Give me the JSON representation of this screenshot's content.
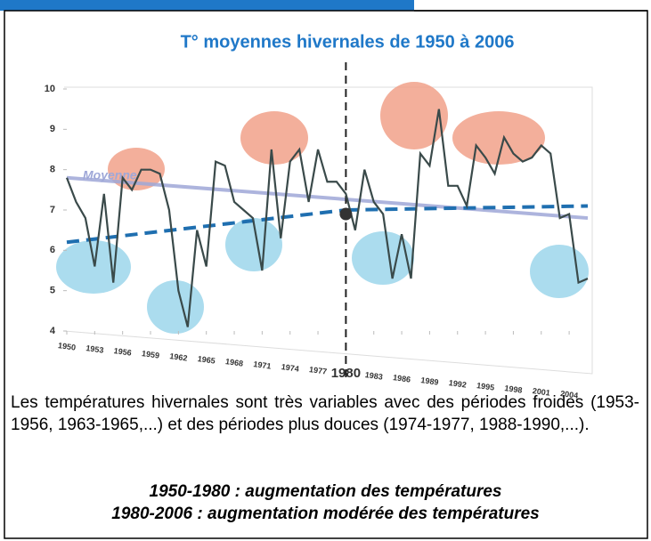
{
  "chart_data": {
    "type": "line",
    "title": "T° moyennes hivernales de 1950 à 2006",
    "x": [
      1950,
      1951,
      1952,
      1953,
      1954,
      1955,
      1956,
      1957,
      1958,
      1959,
      1960,
      1961,
      1962,
      1963,
      1964,
      1965,
      1966,
      1967,
      1968,
      1969,
      1970,
      1971,
      1972,
      1973,
      1974,
      1975,
      1976,
      1977,
      1978,
      1979,
      1980,
      1981,
      1982,
      1983,
      1984,
      1985,
      1986,
      1987,
      1988,
      1989,
      1990,
      1991,
      1992,
      1993,
      1994,
      1995,
      1996,
      1997,
      1998,
      1999,
      2000,
      2001,
      2002,
      2003,
      2004,
      2005,
      2006
    ],
    "series": [
      {
        "color": "#3a4a4a",
        "values": [
          7.8,
          7.2,
          6.8,
          5.6,
          7.4,
          5.2,
          7.8,
          7.5,
          8.0,
          8.0,
          7.9,
          7.0,
          5.0,
          4.1,
          6.5,
          5.6,
          8.2,
          8.1,
          7.2,
          7.0,
          6.8,
          5.5,
          8.5,
          6.3,
          8.2,
          8.5,
          7.2,
          8.5,
          7.7,
          7.7,
          7.4,
          6.5,
          8.0,
          7.2,
          6.9,
          5.3,
          6.4,
          5.3,
          8.4,
          8.1,
          9.5,
          7.6,
          7.6,
          7.1,
          8.6,
          8.3,
          7.9,
          8.8,
          8.4,
          8.2,
          8.3,
          8.6,
          8.4,
          6.8,
          6.9,
          5.2,
          5.3
        ]
      }
    ],
    "mean_line": {
      "name": "Moyenne",
      "color": "#9fa8d8",
      "x": [
        1950,
        2006
      ],
      "values": [
        7.8,
        6.8
      ]
    },
    "trend_lines": [
      {
        "color": "#1f6fb0",
        "x": [
          1950,
          1980
        ],
        "values": [
          6.2,
          7.0
        ]
      },
      {
        "color": "#1f6fb0",
        "x": [
          1980,
          2006
        ],
        "values": [
          7.0,
          7.1
        ]
      }
    ],
    "pivot": {
      "x": 1980,
      "y": 6.9
    },
    "xlim": [
      1950,
      2006
    ],
    "ylim": [
      4,
      10
    ],
    "yticks": [
      4,
      5,
      6,
      7,
      8,
      9,
      10
    ],
    "xticks": [
      1950,
      1953,
      1956,
      1959,
      1962,
      1965,
      1968,
      1971,
      1974,
      1977,
      1980,
      1983,
      1986,
      1989,
      1992,
      1995,
      1998,
      2001,
      2004
    ]
  },
  "text": {
    "paragraph": "Les températures hivernales sont très variables avec des périodes froides (1953-1956, 1963-1965,...) et des périodes plus douces (1974-1977, 1988-1990,...).",
    "conclusions": [
      "1950-1980 : augmentation des températures",
      "1980-2006 : augmentation modérée des températures"
    ]
  }
}
